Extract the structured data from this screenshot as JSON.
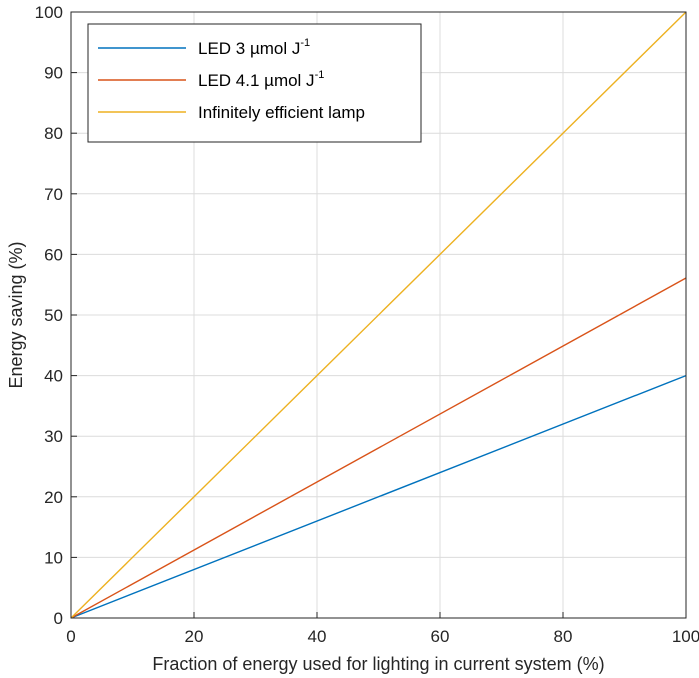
{
  "chart_data": {
    "type": "line",
    "title": "",
    "xlabel": "Fraction of energy used for lighting in current system (%)",
    "ylabel": "Energy saving (%)",
    "xlim": [
      0,
      100
    ],
    "ylim": [
      0,
      100
    ],
    "xticks": [
      "0",
      "20",
      "40",
      "60",
      "80",
      "100"
    ],
    "yticks": [
      "0",
      "10",
      "20",
      "30",
      "40",
      "50",
      "60",
      "70",
      "80",
      "90",
      "100"
    ],
    "grid": true,
    "legend_position": "top-left",
    "series": [
      {
        "name": "LED 3 µmol J",
        "name_sup": "-1",
        "color": "#0072BD",
        "x": [
          0,
          100
        ],
        "y": [
          0,
          40
        ]
      },
      {
        "name": "LED 4.1 µmol J",
        "name_sup": "-1",
        "color": "#D95319",
        "x": [
          0,
          100
        ],
        "y": [
          0,
          56.1
        ]
      },
      {
        "name": "Infinitely efficient lamp",
        "name_sup": "",
        "color": "#EDB120",
        "x": [
          0,
          100
        ],
        "y": [
          0,
          100
        ]
      }
    ]
  }
}
